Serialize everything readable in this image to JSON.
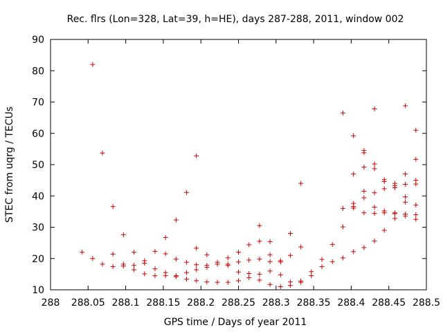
{
  "chart_data": {
    "type": "scatter",
    "title": "Rec. flrs (Lon=328, Lat=39, h=HE), days 287-288, 2011, window 002",
    "xlabel": "GPS time / Days of year 2011",
    "ylabel": "STEC from uqrg / TECUs",
    "xlim": [
      288.0,
      288.5
    ],
    "ylim": [
      10,
      90
    ],
    "xticks": [
      288.0,
      288.05,
      288.1,
      288.15,
      288.2,
      288.25,
      288.3,
      288.35,
      288.4,
      288.45,
      288.5
    ],
    "xtick_labels": [
      "288",
      "288.05",
      "288.1",
      "288.15",
      "288.2",
      "288.25",
      "288.3",
      "288.35",
      "288.4",
      "288.45",
      "288.5"
    ],
    "yticks": [
      10,
      20,
      30,
      40,
      50,
      60,
      70,
      80,
      90
    ],
    "ytick_labels": [
      "10",
      "20",
      "30",
      "40",
      "50",
      "60",
      "70",
      "80",
      "90"
    ],
    "grid": false,
    "marker": "+",
    "color": "#cc0000",
    "points": [
      [
        288.042,
        22.0
      ],
      [
        288.056,
        82.0
      ],
      [
        288.056,
        20.0
      ],
      [
        288.069,
        53.7
      ],
      [
        288.069,
        18.2
      ],
      [
        288.083,
        36.6
      ],
      [
        288.083,
        21.4
      ],
      [
        288.083,
        17.4
      ],
      [
        288.097,
        27.6
      ],
      [
        288.097,
        18.2
      ],
      [
        288.097,
        17.6
      ],
      [
        288.111,
        22.0
      ],
      [
        288.111,
        17.8
      ],
      [
        288.111,
        16.4
      ],
      [
        288.125,
        19.3
      ],
      [
        288.125,
        18.5
      ],
      [
        288.125,
        15.1
      ],
      [
        288.139,
        22.3
      ],
      [
        288.139,
        16.7
      ],
      [
        288.139,
        14.5
      ],
      [
        288.153,
        26.7
      ],
      [
        288.153,
        21.5
      ],
      [
        288.153,
        15.5
      ],
      [
        288.153,
        14.5
      ],
      [
        288.167,
        32.3
      ],
      [
        288.167,
        19.8
      ],
      [
        288.167,
        14.5
      ],
      [
        288.167,
        14.2
      ],
      [
        288.181,
        41.1
      ],
      [
        288.181,
        18.8
      ],
      [
        288.181,
        15.5
      ],
      [
        288.181,
        13.4
      ],
      [
        288.194,
        52.8
      ],
      [
        288.194,
        23.3
      ],
      [
        288.194,
        18.0
      ],
      [
        288.194,
        16.4
      ],
      [
        288.194,
        12.9
      ],
      [
        288.208,
        21.2
      ],
      [
        288.208,
        17.8
      ],
      [
        288.208,
        17.2
      ],
      [
        288.208,
        12.5
      ],
      [
        288.222,
        18.8
      ],
      [
        288.222,
        18.2
      ],
      [
        288.222,
        12.4
      ],
      [
        288.236,
        20.2
      ],
      [
        288.236,
        18.2
      ],
      [
        288.236,
        17.8
      ],
      [
        288.236,
        12.4
      ],
      [
        288.25,
        22.0
      ],
      [
        288.25,
        18.9
      ],
      [
        288.25,
        15.7
      ],
      [
        288.25,
        12.9
      ],
      [
        288.264,
        24.4
      ],
      [
        288.264,
        19.5
      ],
      [
        288.264,
        15.2
      ],
      [
        288.264,
        13.9
      ],
      [
        288.278,
        30.5
      ],
      [
        288.278,
        25.5
      ],
      [
        288.278,
        19.8
      ],
      [
        288.278,
        15.0
      ],
      [
        288.278,
        13.1
      ],
      [
        288.292,
        25.4
      ],
      [
        288.292,
        21.2
      ],
      [
        288.292,
        19.0
      ],
      [
        288.292,
        16.0
      ],
      [
        288.292,
        11.7
      ],
      [
        288.306,
        19.3
      ],
      [
        288.306,
        18.9
      ],
      [
        288.306,
        14.8
      ],
      [
        288.306,
        11.0
      ],
      [
        288.319,
        28.0
      ],
      [
        288.319,
        21.0
      ],
      [
        288.319,
        12.5
      ],
      [
        288.319,
        11.4
      ],
      [
        288.333,
        44.0
      ],
      [
        288.333,
        23.7
      ],
      [
        288.333,
        12.8
      ],
      [
        288.333,
        12.4
      ],
      [
        288.347,
        15.8
      ],
      [
        288.347,
        14.5
      ],
      [
        288.361,
        19.7
      ],
      [
        288.361,
        17.4
      ],
      [
        288.375,
        24.5
      ],
      [
        288.375,
        19.0
      ],
      [
        288.389,
        66.5
      ],
      [
        288.389,
        36.0
      ],
      [
        288.389,
        30.1
      ],
      [
        288.389,
        20.2
      ],
      [
        288.403,
        59.2
      ],
      [
        288.403,
        47.0
      ],
      [
        288.403,
        37.6
      ],
      [
        288.403,
        36.6
      ],
      [
        288.403,
        36.1
      ],
      [
        288.403,
        22.2
      ],
      [
        288.417,
        54.5
      ],
      [
        288.417,
        53.8
      ],
      [
        288.417,
        49.2
      ],
      [
        288.417,
        41.5
      ],
      [
        288.417,
        39.4
      ],
      [
        288.417,
        34.6
      ],
      [
        288.417,
        23.5
      ],
      [
        288.431,
        67.8
      ],
      [
        288.431,
        50.2
      ],
      [
        288.431,
        48.7
      ],
      [
        288.431,
        41.0
      ],
      [
        288.431,
        36.4
      ],
      [
        288.431,
        34.4
      ],
      [
        288.431,
        25.6
      ],
      [
        288.444,
        45.2
      ],
      [
        288.444,
        44.6
      ],
      [
        288.444,
        42.3
      ],
      [
        288.444,
        35.2
      ],
      [
        288.444,
        34.6
      ],
      [
        288.444,
        29.0
      ],
      [
        288.458,
        44.0
      ],
      [
        288.458,
        43.3
      ],
      [
        288.458,
        42.6
      ],
      [
        288.458,
        34.6
      ],
      [
        288.458,
        34.3
      ],
      [
        288.458,
        32.8
      ],
      [
        288.472,
        68.8
      ],
      [
        288.472,
        47.0
      ],
      [
        288.472,
        43.7
      ],
      [
        288.472,
        39.7
      ],
      [
        288.472,
        38.0
      ],
      [
        288.472,
        34.2
      ],
      [
        288.472,
        33.6
      ],
      [
        288.486,
        61.0
      ],
      [
        288.486,
        51.7
      ],
      [
        288.486,
        45.0
      ],
      [
        288.486,
        43.8
      ],
      [
        288.486,
        37.1
      ],
      [
        288.486,
        34.0
      ],
      [
        288.486,
        32.5
      ]
    ]
  }
}
